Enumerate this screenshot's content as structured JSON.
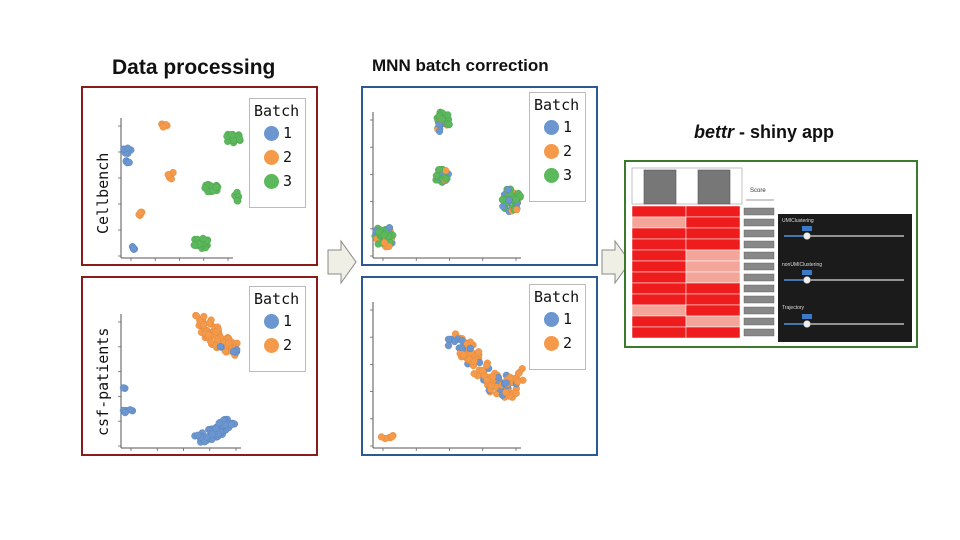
{
  "titles": {
    "data_processing": "Data processing",
    "mnn": "MNN batch correction",
    "bettr_italic": "bettr",
    "bettr_rest": " - shiny app"
  },
  "legend": {
    "title": "Batch",
    "items3": [
      "1",
      "2",
      "3"
    ],
    "items2": [
      "1",
      "2"
    ]
  },
  "ylabels": {
    "cellbench": "Cellbench",
    "csf": "csf-patients"
  },
  "colors": {
    "batch1": "#6b96cf",
    "batch2": "#f59a4a",
    "batch3": "#5cb85c",
    "border_red": "#8b1a1a",
    "border_blue": "#2a5a94",
    "border_green": "#3a7a2a"
  },
  "shiny": {
    "score_label": "Score",
    "sliders": [
      "UMIClustering",
      "nonUMIClustering",
      "Trajectory"
    ]
  }
}
